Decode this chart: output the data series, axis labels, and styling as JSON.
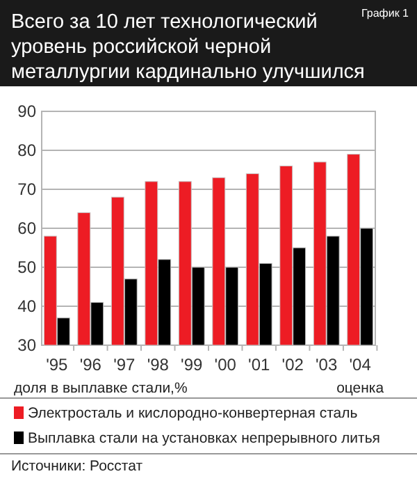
{
  "chart_data": {
    "type": "bar",
    "title": "Всего за 10 лет технологический уровень российской черной металлургии кардинально улучшился",
    "subtitle": "График 1",
    "ylabel": "доля в выплавке стали,%",
    "categories": [
      "'95",
      "'96",
      "'97",
      "'98",
      "'99",
      "'00",
      "'01",
      "'02",
      "'03",
      "'04"
    ],
    "series": [
      {
        "name": "Электросталь и кислородно-конвертерная сталь",
        "color": "#ed1c24",
        "values": [
          58,
          64,
          68,
          72,
          72,
          73,
          74,
          76,
          77,
          79
        ]
      },
      {
        "name": "Выплавка стали на установках непрерывного литья",
        "color": "#000000",
        "values": [
          37,
          41,
          47,
          52,
          50,
          50,
          51,
          55,
          58,
          60
        ]
      }
    ],
    "ylim": [
      30,
      90
    ],
    "yticks": [
      30,
      40,
      50,
      60,
      70,
      80,
      90
    ],
    "grid": "y",
    "legend": "bottom",
    "annotations": [
      "оценка",
      "Источники: Росстат"
    ]
  }
}
